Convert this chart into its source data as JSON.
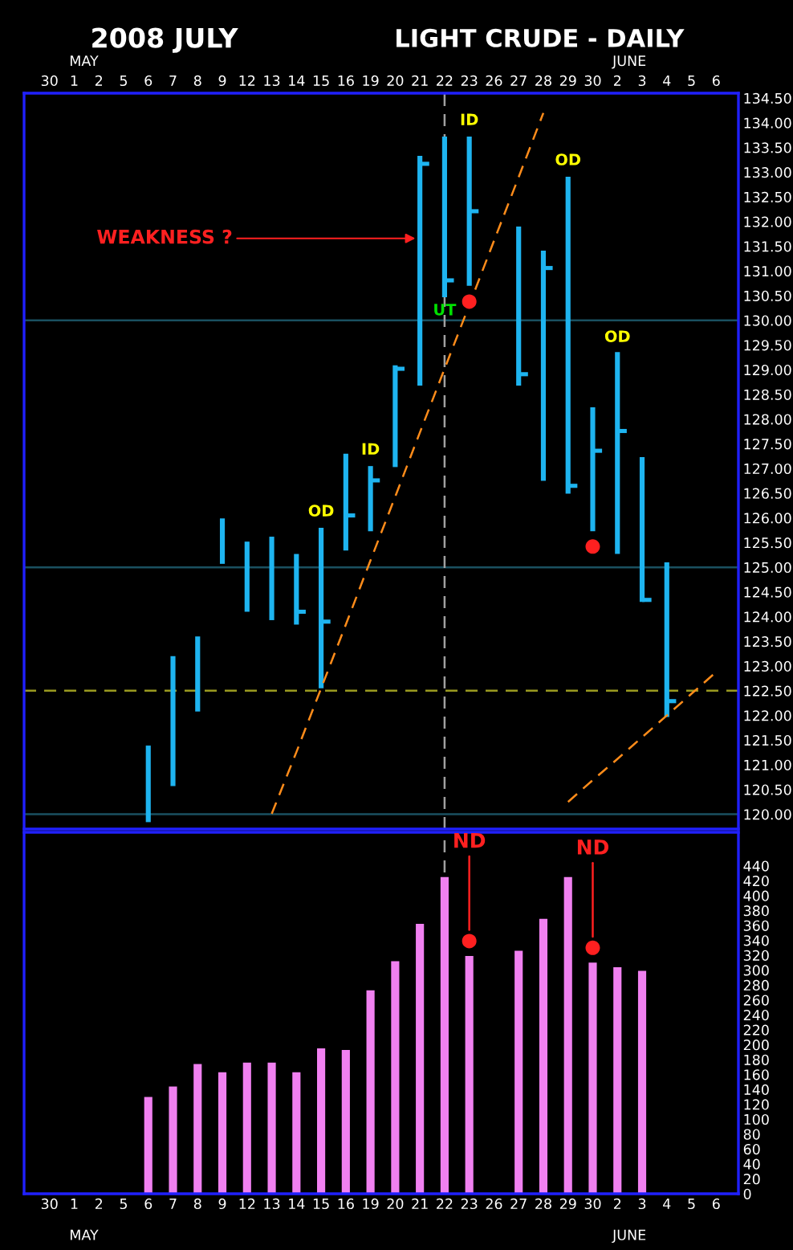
{
  "chart_data": [
    {
      "type": "bar",
      "title": "2008 JULY",
      "subtitle": "LIGHT CRUDE - DAILY",
      "color": "#1eb4f0",
      "categories": [
        "30",
        "1",
        "2",
        "5",
        "6",
        "7",
        "8",
        "9",
        "12",
        "13",
        "14",
        "15",
        "16",
        "19",
        "20",
        "21",
        "22",
        "23",
        "26",
        "27",
        "28",
        "29",
        "30",
        "2",
        "3",
        "4",
        "5",
        "6"
      ],
      "base": [
        null,
        null,
        null,
        null,
        119.84,
        120.57,
        122.08,
        125.07,
        124.1,
        123.93,
        123.84,
        122.55,
        125.34,
        125.73,
        127.03,
        128.68,
        130.47,
        130.7,
        null,
        128.68,
        126.75,
        126.49,
        125.73,
        125.27,
        124.3,
        121.97,
        null,
        null
      ],
      "values": [
        null,
        null,
        null,
        null,
        1.55,
        2.63,
        1.52,
        0.92,
        1.42,
        1.69,
        1.43,
        3.25,
        1.96,
        1.32,
        2.06,
        4.65,
        3.25,
        3.02,
        null,
        3.22,
        4.66,
        6.42,
        2.51,
        4.09,
        2.93,
        3.13,
        null,
        null
      ],
      "series": [
        {
          "type": "scatter",
          "marker": "square",
          "color": "#1eb4f0",
          "values": [
            null,
            null,
            null,
            null,
            null,
            null,
            null,
            null,
            null,
            null,
            124.1,
            123.9,
            126.05,
            126.76,
            129.02,
            133.17,
            130.81,
            132.21,
            null,
            128.91,
            131.06,
            126.65,
            127.36,
            127.76,
            124.34,
            122.29,
            null,
            null
          ]
        },
        {
          "type": "scatter",
          "marker": "circle",
          "color": "#ff2020",
          "values": [
            null,
            null,
            null,
            null,
            null,
            null,
            null,
            null,
            null,
            null,
            null,
            null,
            null,
            null,
            null,
            null,
            null,
            130.38,
            null,
            null,
            null,
            null,
            125.42,
            null,
            null,
            null,
            null,
            null
          ]
        },
        {
          "type": "line",
          "color": "#ff8c1a",
          "line_style": "dashed",
          "values": [
            null,
            null,
            null,
            null,
            null,
            null,
            null,
            null,
            null,
            120.01,
            121.26,
            122.55,
            123.84,
            125.14,
            126.43,
            127.73,
            129.02,
            130.31,
            131.61,
            132.9,
            134.2,
            null,
            null,
            null,
            null,
            null,
            null,
            null
          ]
        },
        {
          "type": "line",
          "color": "#ff8c1a",
          "line_style": "dashed",
          "values": [
            null,
            null,
            null,
            null,
            null,
            null,
            null,
            null,
            null,
            null,
            null,
            null,
            null,
            null,
            null,
            null,
            null,
            null,
            null,
            null,
            null,
            120.25,
            120.69,
            121.12,
            121.56,
            122.0,
            122.44,
            122.88
          ]
        }
      ],
      "ylim": [
        119.7,
        134.6
      ],
      "yticks": [
        {
          "value": 120,
          "label": "120.00"
        },
        {
          "value": 120.5,
          "label": "120.50"
        },
        {
          "value": 121,
          "label": "121.00"
        },
        {
          "value": 121.5,
          "label": "121.50"
        },
        {
          "value": 122,
          "label": "122.00"
        },
        {
          "value": 122.5,
          "label": "122.50"
        },
        {
          "value": 123,
          "label": "123.00"
        },
        {
          "value": 123.5,
          "label": "123.50"
        },
        {
          "value": 124,
          "label": "124.00"
        },
        {
          "value": 124.5,
          "label": "124.50"
        },
        {
          "value": 125,
          "label": "125.00"
        },
        {
          "value": 125.5,
          "label": "125.50"
        },
        {
          "value": 126,
          "label": "126.00"
        },
        {
          "value": 126.5,
          "label": "126.50"
        },
        {
          "value": 127,
          "label": "127.00"
        },
        {
          "value": 127.5,
          "label": "127.50"
        },
        {
          "value": 128,
          "label": "128.00"
        },
        {
          "value": 128.5,
          "label": "128.50"
        },
        {
          "value": 129,
          "label": "129.00"
        },
        {
          "value": 129.5,
          "label": "129.50"
        },
        {
          "value": 130,
          "label": "130.00"
        },
        {
          "value": 130.5,
          "label": "130.50"
        },
        {
          "value": 131,
          "label": "131.00"
        },
        {
          "value": 131.5,
          "label": "131.50"
        },
        {
          "value": 132,
          "label": "132.00"
        },
        {
          "value": 132.5,
          "label": "132.50"
        },
        {
          "value": 133,
          "label": "133.00"
        },
        {
          "value": 133.5,
          "label": "133.50"
        },
        {
          "value": 134,
          "label": "134.00"
        },
        {
          "value": 134.5,
          "label": "134.50"
        }
      ],
      "ref_lines": [
        {
          "axis": "y",
          "value": 120,
          "color": "#1a5060"
        },
        {
          "axis": "y",
          "value": 125,
          "color": "#1a5060"
        },
        {
          "axis": "y",
          "value": 130,
          "color": "#1a5060"
        },
        {
          "axis": "y",
          "value": 122.5,
          "color": "#9a9a20",
          "line_style": "dashed"
        },
        {
          "axis": "x",
          "value": "22",
          "color": "#a0a0a0",
          "line_style": "dashed"
        }
      ],
      "annotations": [
        {
          "text": "WEAKNESS ?",
          "x": "21",
          "y": 131.66
        },
        "OD",
        "ID",
        "UT",
        "ID",
        "OD",
        "OD",
        "MAY",
        "JUNE"
      ]
    },
    {
      "type": "bar",
      "color": "#f080f0",
      "categories": [
        "30",
        "1",
        "2",
        "5",
        "6",
        "7",
        "8",
        "9",
        "12",
        "13",
        "14",
        "15",
        "16",
        "19",
        "20",
        "21",
        "22",
        "23",
        "26",
        "27",
        "28",
        "29",
        "30",
        "2",
        "3",
        "4",
        "5",
        "6"
      ],
      "values": [
        null,
        null,
        null,
        null,
        130,
        144,
        174,
        163,
        176,
        176,
        163,
        195,
        193,
        273,
        312,
        362,
        425,
        319,
        null,
        326,
        369,
        425,
        310,
        304,
        299,
        null,
        null,
        null
      ],
      "series": [
        {
          "type": "scatter",
          "marker": "circle",
          "color": "#ff2020",
          "values": [
            null,
            null,
            null,
            null,
            null,
            null,
            null,
            null,
            null,
            null,
            null,
            null,
            null,
            null,
            null,
            null,
            null,
            339,
            null,
            null,
            null,
            null,
            330,
            null,
            null,
            null,
            null,
            null
          ]
        }
      ],
      "ylim": [
        0,
        485
      ],
      "yticks": [
        0,
        20,
        40,
        60,
        80,
        100,
        120,
        140,
        160,
        180,
        200,
        220,
        240,
        260,
        280,
        300,
        320,
        340,
        360,
        380,
        400,
        420,
        440
      ],
      "ref_lines": [
        {
          "axis": "x",
          "value": "22",
          "color": "#a0a0a0",
          "line_style": "dashed"
        }
      ],
      "annotations": [
        {
          "text": "ND",
          "x": "23",
          "y": 339
        },
        {
          "text": "ND",
          "y": 330
        },
        "MAY",
        "JUNE"
      ]
    }
  ]
}
